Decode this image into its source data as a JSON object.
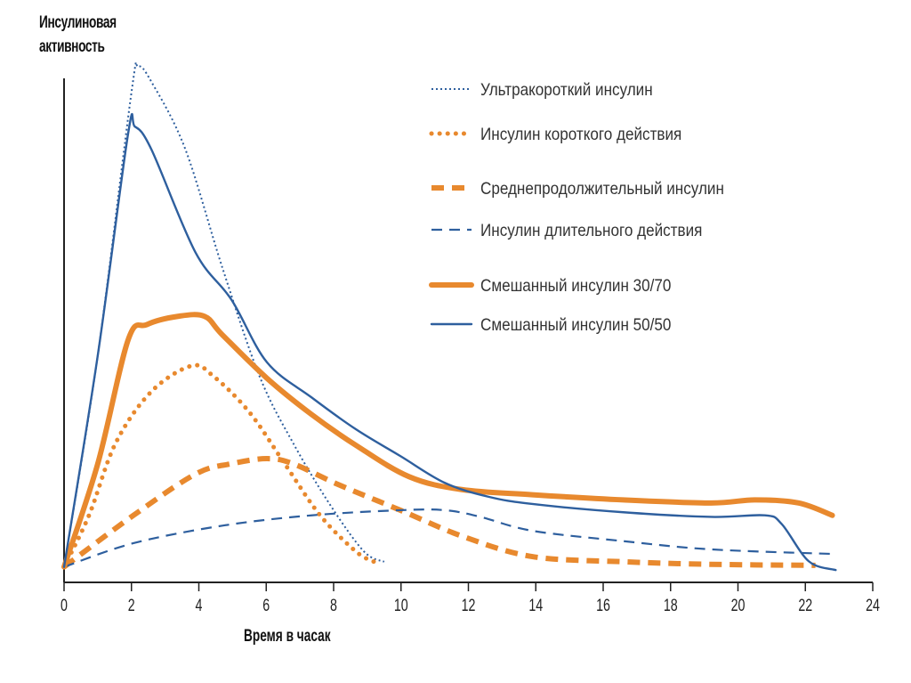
{
  "chart_data": {
    "type": "line",
    "title": "",
    "ylabel_lines": [
      "Инсулиновая",
      "активность"
    ],
    "xlabel": "Время в часах",
    "xlabel_text": "Время в часак",
    "xlim": [
      0,
      24
    ],
    "ylim": [
      0,
      100
    ],
    "xticks": [
      0,
      2,
      4,
      6,
      8,
      10,
      12,
      14,
      16,
      18,
      20,
      22,
      24
    ],
    "grid": false,
    "legend_position": "top-right",
    "series": [
      {
        "name": "Ультракороткий инсулин",
        "color": "#2e5f9e",
        "style": "dotted-thin",
        "points": [
          [
            0,
            3
          ],
          [
            1,
            44
          ],
          [
            2,
            95
          ],
          [
            2.2,
            100
          ],
          [
            2.6,
            97
          ],
          [
            3.6,
            84
          ],
          [
            4.7,
            61
          ],
          [
            5.8,
            40
          ],
          [
            6.8,
            27
          ],
          [
            7.9,
            15
          ],
          [
            8.9,
            6
          ],
          [
            9.5,
            4
          ]
        ]
      },
      {
        "name": "Инсулин короткого действия",
        "color": "#e8892e",
        "style": "dotted-thick",
        "points": [
          [
            0,
            3
          ],
          [
            0.74,
            13
          ],
          [
            1.53,
            27
          ],
          [
            2.59,
            37
          ],
          [
            3.78,
            42
          ],
          [
            4.43,
            40
          ],
          [
            5.5,
            33
          ],
          [
            6.55,
            23
          ],
          [
            7.6,
            13
          ],
          [
            8.66,
            6
          ],
          [
            9.2,
            4
          ]
        ]
      },
      {
        "name": "Среднепродолжительный инсулин",
        "color": "#e8892e",
        "style": "dashed-thick",
        "points": [
          [
            0,
            3
          ],
          [
            2.06,
            13
          ],
          [
            3.9,
            21
          ],
          [
            4.96,
            23
          ],
          [
            6.02,
            24
          ],
          [
            6.8,
            23
          ],
          [
            8.13,
            19
          ],
          [
            9.98,
            14
          ],
          [
            11.8,
            9
          ],
          [
            13.9,
            5
          ],
          [
            16.6,
            4
          ],
          [
            19.2,
            3.5
          ],
          [
            22.3,
            3.3
          ]
        ]
      },
      {
        "name": "Инсулин длительного действия",
        "color": "#2e5f9e",
        "style": "dashed-thin",
        "points": [
          [
            0,
            3
          ],
          [
            2.06,
            7.6
          ],
          [
            4.7,
            11
          ],
          [
            7.34,
            13
          ],
          [
            9.98,
            14
          ],
          [
            11.3,
            14
          ],
          [
            12.36,
            12.7
          ],
          [
            13.9,
            10
          ],
          [
            16.6,
            8
          ],
          [
            19.2,
            6.4
          ],
          [
            22.9,
            5.5
          ]
        ]
      },
      {
        "name": "Смешанный инсулин 30/70",
        "color": "#e8892e",
        "style": "solid-thick",
        "points": [
          [
            0,
            3
          ],
          [
            1,
            23
          ],
          [
            1.9,
            47
          ],
          [
            2.46,
            50
          ],
          [
            3.38,
            51.6
          ],
          [
            4.17,
            51.6
          ],
          [
            4.7,
            48
          ],
          [
            6.02,
            39.6
          ],
          [
            7.34,
            32.6
          ],
          [
            8.66,
            26.6
          ],
          [
            10.24,
            20.5
          ],
          [
            11.8,
            18
          ],
          [
            13.9,
            17
          ],
          [
            16.6,
            16
          ],
          [
            19.2,
            15.4
          ],
          [
            20.5,
            16
          ],
          [
            21.8,
            15.4
          ],
          [
            22.8,
            13
          ]
        ]
      },
      {
        "name": "Смешанный инсулин 50/50",
        "color": "#2e5f9e",
        "style": "solid-thin",
        "points": [
          [
            0,
            3
          ],
          [
            1,
            44
          ],
          [
            1.9,
            87
          ],
          [
            2.1,
            88.4
          ],
          [
            2.59,
            84
          ],
          [
            3.9,
            64
          ],
          [
            4.97,
            54.8
          ],
          [
            6.02,
            42.7
          ],
          [
            7.34,
            35.9
          ],
          [
            8.66,
            29.7
          ],
          [
            9.98,
            24.5
          ],
          [
            11.3,
            19.3
          ],
          [
            12.6,
            16.6
          ],
          [
            13.9,
            15.2
          ],
          [
            16.6,
            13.6
          ],
          [
            19.2,
            12.7
          ],
          [
            20.8,
            13
          ],
          [
            21.3,
            11.3
          ],
          [
            22.1,
            4.1
          ],
          [
            22.9,
            2.4
          ]
        ]
      }
    ]
  }
}
